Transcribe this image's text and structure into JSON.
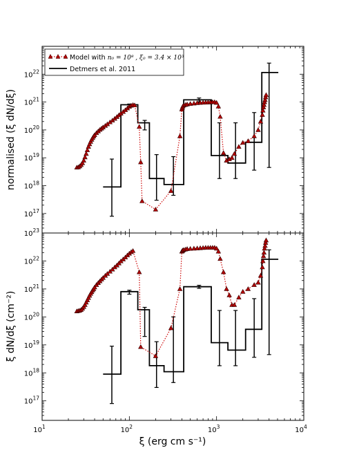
{
  "chart_data": [
    {
      "type": "scatter",
      "panel": "top",
      "ylabel": "normalised (ξ dN/dξ)",
      "xlabel": "",
      "xscale": "log",
      "yscale": "log",
      "xlim": [
        10,
        10000
      ],
      "ylim": [
        2e+16,
        1e+23
      ],
      "grid": false,
      "legend_position": "top-left",
      "x_tick_labels": [],
      "y_tick_labels": [
        "10^17",
        "10^18",
        "10^19",
        "10^20",
        "10^21",
        "10^22"
      ],
      "legend": [
        {
          "label_prefix": "Model with ",
          "label_math": "n₀ = 10⁸ , ξ₀ = 3.4 × 10³",
          "style": "dotted-triangle",
          "color": "#cc0000"
        },
        {
          "label": "Detmers et al. 2011",
          "style": "step-line",
          "color": "#000000"
        }
      ],
      "series": [
        {
          "name": "Model with n0=10^8, xi0=3.4x10^3",
          "x": [
            25,
            26,
            27,
            28,
            29,
            30,
            31,
            32,
            33,
            34,
            35,
            36,
            37,
            38,
            39,
            40,
            42,
            44,
            46,
            48,
            50,
            53,
            56,
            60,
            64,
            68,
            72,
            76,
            80,
            85,
            90,
            95,
            100,
            105,
            110,
            115,
            130,
            135,
            140,
            200,
            300,
            380,
            400,
            405,
            410,
            420,
            440,
            460,
            500,
            550,
            600,
            650,
            700,
            750,
            800,
            850,
            900,
            950,
            1000,
            1050,
            1100,
            1200,
            1300,
            1400,
            1500,
            1600,
            1800,
            2000,
            2300,
            2700,
            3000,
            3200,
            3350,
            3400,
            3450,
            3500,
            3550,
            3600,
            3650,
            3700
          ],
          "y": [
            4.5e+18,
            4.6e+18,
            5e+18,
            5.6e+18,
            6.5e+18,
            8e+18,
            1.05e+19,
            1.4e+19,
            1.9e+19,
            2.5e+19,
            3.1e+19,
            3.8e+19,
            4.5e+19,
            5.2e+19,
            5.9e+19,
            6.6e+19,
            7.8e+19,
            9e+19,
            1.02e+20,
            1.13e+20,
            1.25e+20,
            1.42e+20,
            1.62e+20,
            1.9e+20,
            2.2e+20,
            2.55e+20,
            2.95e+20,
            3.4e+20,
            3.9e+20,
            4.5e+20,
            5.2e+20,
            6e+20,
            6.9e+20,
            7.5e+20,
            7.9e+20,
            7.7e+20,
            1.3e+20,
            7e+18,
            2.8e+17,
            1.4e+17,
            6.5e+17,
            6e+19,
            5.5e+20,
            6.2e+20,
            7e+20,
            7.6e+20,
            8e+20,
            8.3e+20,
            8.7e+20,
            9e+20,
            9.3e+20,
            9.5e+20,
            9.6e+20,
            9.7e+20,
            9.8e+20,
            9.9e+20,
            1e+21,
            1e+21,
            9.5e+20,
            7e+20,
            3e+20,
            1.5e+19,
            8e+18,
            9e+18,
            1e+19,
            1.4e+19,
            2.5e+19,
            3.5e+19,
            4e+19,
            6e+19,
            1e+20,
            2e+20,
            3.5e+20,
            5e+20,
            6.5e+20,
            8e+20,
            1e+21,
            1.2e+21,
            1.5e+21,
            1.8e+21
          ]
        },
        {
          "name": "Detmers et al. 2011",
          "steps": [
            {
              "x0": 50,
              "x1": 80,
              "y": 9e+17,
              "xc": 63,
              "err": [
                8e+16,
                9e+18
              ]
            },
            {
              "x0": 80,
              "x1": 125,
              "y": 8e+20,
              "xc": 100,
              "err": [
                7e+20,
                8.5e+20
              ]
            },
            {
              "x0": 125,
              "x1": 170,
              "y": 1.8e+20,
              "xc": 150,
              "err": [
                1e+20,
                2.2e+20
              ]
            },
            {
              "x0": 170,
              "x1": 250,
              "y": 1.8e+18,
              "xc": 205,
              "err": [
                3e+17,
                1.3e+19
              ]
            },
            {
              "x0": 250,
              "x1": 420,
              "y": 1.1e+18,
              "xc": 320,
              "err": [
                4.5e+17,
                1.1e+19
              ]
            },
            {
              "x0": 420,
              "x1": 870,
              "y": 1.2e+21,
              "xc": 630,
              "err": [
                1e+21,
                1.4e+21
              ]
            },
            {
              "x0": 870,
              "x1": 1350,
              "y": 1.2e+19,
              "xc": 1080,
              "err": [
                1.8e+18,
                1.8e+20
              ]
            },
            {
              "x0": 1350,
              "x1": 2150,
              "y": 6.5e+18,
              "xc": 1650,
              "err": [
                1.8e+18,
                1.8e+20
              ]
            },
            {
              "x0": 2150,
              "x1": 3300,
              "y": 3.6e+19,
              "xc": 2700,
              "err": [
                3.6e+18,
                4.2e+20
              ]
            },
            {
              "x0": 3300,
              "x1": 5100,
              "y": 1.15e+22,
              "xc": 4000,
              "err": [
                4.5e+18,
                2.5e+22
              ]
            }
          ]
        }
      ]
    },
    {
      "type": "scatter",
      "panel": "bottom",
      "ylabel": "ξ dN/dξ (cm⁻²)",
      "xlabel": "ξ (erg cm s⁻¹)",
      "xscale": "log",
      "yscale": "log",
      "xlim": [
        10,
        10000
      ],
      "ylim": [
        2e+16,
        1e+23
      ],
      "grid": false,
      "x_tick_labels": [
        "10^1",
        "10^2",
        "10^3",
        "10^4"
      ],
      "y_tick_labels": [
        "10^17",
        "10^18",
        "10^19",
        "10^20",
        "10^21",
        "10^22",
        "10^23"
      ],
      "series": [
        {
          "name": "Model with n0=10^8, xi0=3.4x10^3",
          "x": [
            25,
            26,
            27,
            28,
            29,
            30,
            31,
            32,
            33,
            34,
            35,
            36,
            37,
            38,
            39,
            40,
            42,
            44,
            46,
            48,
            50,
            53,
            56,
            60,
            64,
            68,
            72,
            76,
            80,
            85,
            90,
            95,
            100,
            105,
            110,
            130,
            135,
            200,
            300,
            380,
            400,
            405,
            410,
            420,
            440,
            460,
            500,
            550,
            600,
            650,
            700,
            750,
            800,
            850,
            900,
            950,
            1000,
            1050,
            1100,
            1200,
            1300,
            1400,
            1500,
            1600,
            1800,
            2000,
            2300,
            2700,
            3000,
            3200,
            3350,
            3400,
            3450,
            3500,
            3550,
            3600,
            3650,
            3700
          ],
          "y": [
            1.6e+20,
            1.65e+20,
            1.7e+20,
            1.8e+20,
            2e+20,
            2.3e+20,
            2.7e+20,
            3.3e+20,
            4e+20,
            4.8e+20,
            5.8e+20,
            6.8e+20,
            7.8e+20,
            9e+20,
            1e+21,
            1.15e+21,
            1.4e+21,
            1.65e+21,
            1.9e+21,
            2.2e+21,
            2.5e+21,
            3e+21,
            3.5e+21,
            4.2e+21,
            5e+21,
            6e+21,
            7e+21,
            8.3e+21,
            9.8e+21,
            1.15e+22,
            1.35e+22,
            1.6e+22,
            1.85e+22,
            2.1e+22,
            2.3e+22,
            4e+21,
            8.5e+18,
            4e+18,
            4e+19,
            1e+21,
            2.2e+22,
            2.3e+22,
            2.4e+22,
            2.5e+22,
            2.6e+22,
            2.7e+22,
            2.75e+22,
            2.8e+22,
            2.85e+22,
            2.9e+22,
            2.95e+22,
            3e+22,
            3e+22,
            3e+22,
            3e+22,
            3e+22,
            2.8e+22,
            2.2e+22,
            1.2e+22,
            4e+21,
            1e+21,
            6e+20,
            2.7e+20,
            2.7e+20,
            5e+20,
            8e+20,
            1e+21,
            1.4e+21,
            1.7e+21,
            3e+21,
            6e+21,
            1e+22,
            1.5e+22,
            2e+22,
            2.8e+22,
            3.5e+22,
            4.5e+22,
            5.5e+22
          ]
        },
        {
          "name": "Detmers et al. 2011",
          "steps": [
            {
              "x0": 50,
              "x1": 80,
              "y": 9e+17,
              "xc": 63,
              "err": [
                8e+16,
                9e+18
              ]
            },
            {
              "x0": 80,
              "x1": 125,
              "y": 8e+20,
              "xc": 100,
              "err": [
                6.5e+20,
                9e+20
              ]
            },
            {
              "x0": 125,
              "x1": 170,
              "y": 1.8e+20,
              "xc": 150,
              "err": [
                2e+19,
                2.2e+20
              ]
            },
            {
              "x0": 170,
              "x1": 250,
              "y": 1.8e+18,
              "xc": 205,
              "err": [
                3e+17,
                1.3e+19
              ]
            },
            {
              "x0": 250,
              "x1": 420,
              "y": 1.1e+18,
              "xc": 320,
              "err": [
                4.5e+17,
                1e+20
              ]
            },
            {
              "x0": 420,
              "x1": 870,
              "y": 1.2e+21,
              "xc": 630,
              "err": [
                1.05e+21,
                1.35e+21
              ]
            },
            {
              "x0": 870,
              "x1": 1350,
              "y": 1.2e+19,
              "xc": 1080,
              "err": [
                1.8e+18,
                1.7e+20
              ]
            },
            {
              "x0": 1350,
              "x1": 2150,
              "y": 6.5e+18,
              "xc": 1650,
              "err": [
                1.8e+18,
                1.7e+20
              ]
            },
            {
              "x0": 2150,
              "x1": 3300,
              "y": 3.6e+19,
              "xc": 2700,
              "err": [
                3.6e+18,
                4.5e+20
              ]
            },
            {
              "x0": 3300,
              "x1": 5100,
              "y": 1.15e+22,
              "xc": 4000,
              "err": [
                4.5e+18,
                2.5e+22
              ]
            }
          ]
        }
      ]
    }
  ]
}
